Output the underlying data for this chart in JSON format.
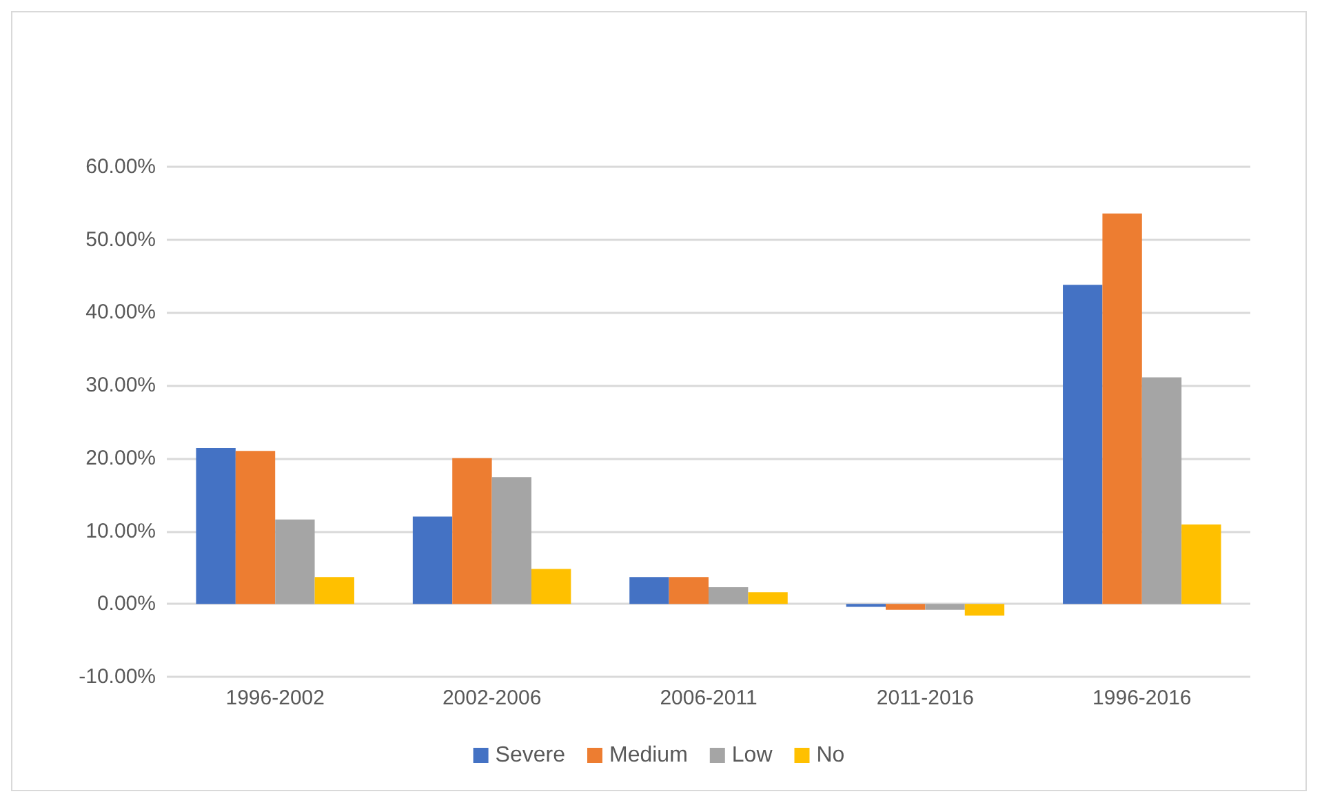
{
  "chart_data": {
    "type": "bar",
    "categories": [
      "1996-2002",
      "2002-2006",
      "2006-2011",
      "2011-2016",
      "1996-2016"
    ],
    "series": [
      {
        "name": "Severe",
        "color": "#4472c4",
        "values": [
          21.4,
          12.0,
          3.7,
          -0.4,
          43.8
        ]
      },
      {
        "name": "Medium",
        "color": "#ed7d31",
        "values": [
          21.0,
          20.0,
          3.7,
          -0.8,
          53.6
        ]
      },
      {
        "name": "Low",
        "color": "#a5a5a5",
        "values": [
          11.6,
          17.4,
          2.3,
          -0.8,
          31.1
        ]
      },
      {
        "name": "No",
        "color": "#ffc000",
        "values": [
          3.7,
          4.8,
          1.6,
          -1.6,
          10.9
        ]
      }
    ],
    "ylim": [
      -10,
      60
    ],
    "yticks": [
      {
        "value": -10,
        "label": "-10.00%"
      },
      {
        "value": 0,
        "label": "0.00%"
      },
      {
        "value": 10,
        "label": "10.00%"
      },
      {
        "value": 20,
        "label": "20.00%"
      },
      {
        "value": 30,
        "label": "30.00%"
      },
      {
        "value": 40,
        "label": "40.00%"
      },
      {
        "value": 50,
        "label": "50.00%"
      },
      {
        "value": 60,
        "label": "60.00%"
      }
    ],
    "grid": "y",
    "legend": "bottom"
  }
}
